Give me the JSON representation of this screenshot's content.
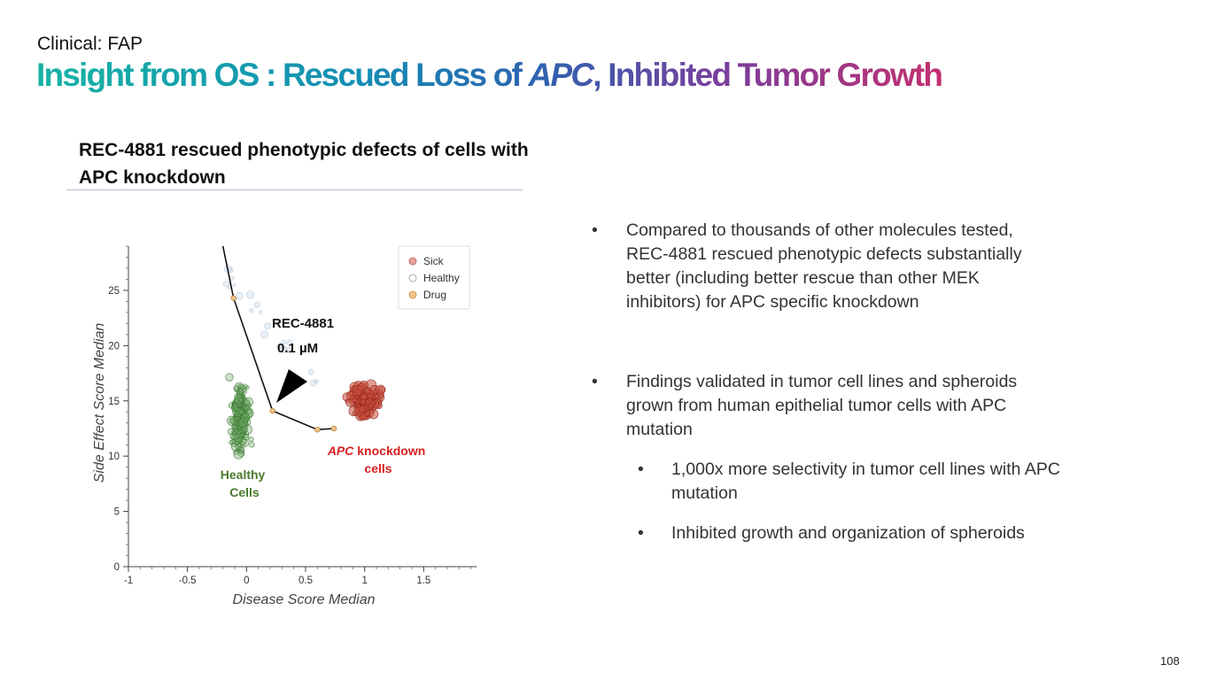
{
  "header": {
    "kicker": "Clinical: FAP",
    "title_part1": "Insight from OS : Rescued Loss of ",
    "title_italic": "APC",
    "title_part2": ", Inhibited Tumor Growth"
  },
  "section": {
    "heading": "REC-4881 rescued phenotypic defects of cells with APC knockdown"
  },
  "bullets": [
    "Compared to thousands of other molecules tested, REC-4881 rescued phenotypic defects substantially better (including better rescue than other MEK inhibitors) for APC specific knockdown",
    "Findings validated in tumor cell lines and spheroids grown from human epithelial tumor cells with APC mutation"
  ],
  "sub_bullets": [
    "1,000x more selectivity in tumor cell lines with APC mutation",
    "Inhibited growth and organization of spheroids"
  ],
  "bullet_symbol": "•",
  "page_number": "108",
  "colors": {
    "sick": "#c0392b",
    "healthy": "#4f8a3c",
    "drug": "#e0a04c",
    "label_healthy": "#4a7a2e",
    "label_apc": "#d61f1f"
  },
  "chart_data": {
    "type": "scatter",
    "xlabel": "Disease Score Median",
    "ylabel": "Side Effect Score Median",
    "xlim": [
      -1,
      2
    ],
    "ylim": [
      0,
      29
    ],
    "x_ticks": [
      "-1",
      "-0.5",
      "0",
      "0.5",
      "1",
      "1.5"
    ],
    "y_ticks": [
      "0",
      "5",
      "10",
      "15",
      "20",
      "25"
    ],
    "legend": {
      "placement": "top-right",
      "entries": [
        "Sick",
        "Healthy",
        "Drug"
      ]
    },
    "clusters": [
      {
        "name": "Sick",
        "center": [
          1.0,
          15.0
        ],
        "spread": [
          0.12,
          1.4
        ]
      },
      {
        "name": "Healthy",
        "center": [
          -0.05,
          13.5
        ],
        "spread": [
          0.07,
          3.0
        ]
      }
    ],
    "dose_response_line": [
      [
        -0.2,
        29
      ],
      [
        -0.11,
        24.3
      ],
      [
        0.22,
        14.1
      ],
      [
        0.6,
        12.4
      ],
      [
        0.74,
        12.5
      ]
    ],
    "drug_points": [
      [
        -0.11,
        24.3
      ],
      [
        0.22,
        14.1
      ],
      [
        0.6,
        12.4
      ],
      [
        0.74,
        12.5
      ]
    ],
    "annotations": {
      "compound": "REC-4881",
      "dose": "0.1 µM",
      "healthy_label": "Healthy Cells",
      "apc_italic": "APC",
      "apc_rest": " knockdown cells"
    }
  }
}
